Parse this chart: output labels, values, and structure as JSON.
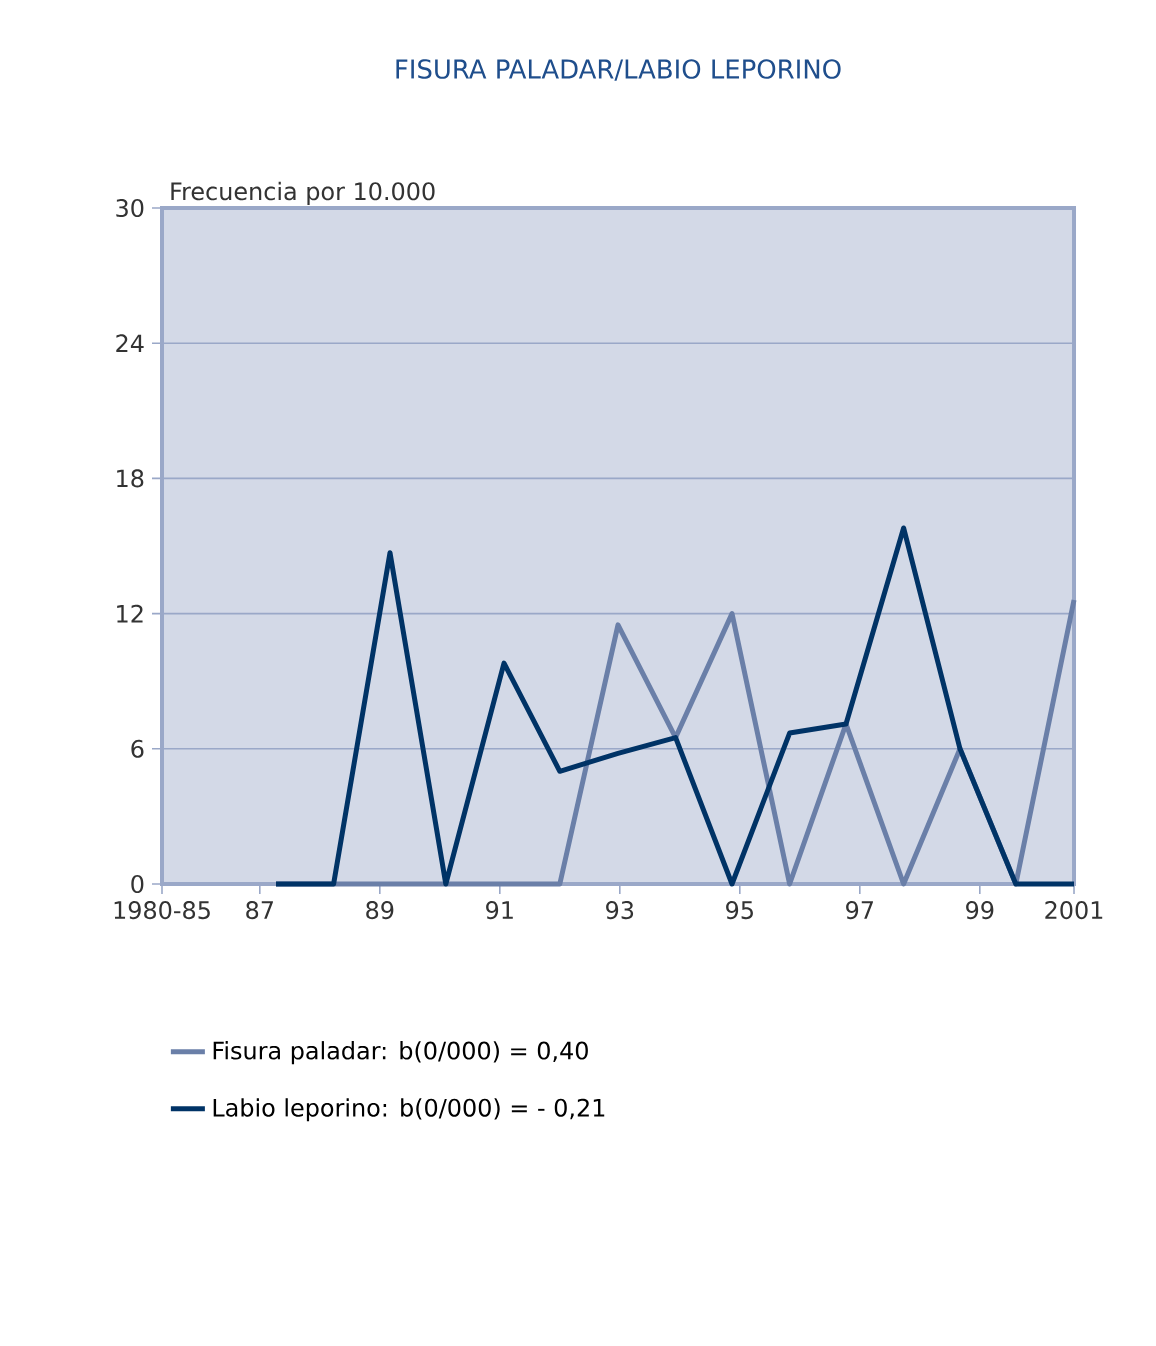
{
  "chart_data": {
    "type": "line",
    "title": "FISURA PALADAR/LABIO LEPORINO",
    "ylabel": "Frecuencia por 10.000",
    "x": [
      1987.27,
      1988.23,
      1989.17,
      1990.1,
      1991.07,
      1992.0,
      1992.97,
      1993.93,
      1994.87,
      1995.83,
      1996.77,
      1997.73,
      1998.67,
      1999.6,
      2000.57
    ],
    "series": [
      {
        "name": "Fisura paladar:  b(0/000) = 0,40",
        "color": "#6a7fa8",
        "values": [
          0,
          0,
          0,
          0,
          0,
          0,
          11.5,
          6.5,
          12.0,
          0,
          7.1,
          0,
          6.0,
          0,
          12.6
        ]
      },
      {
        "name": "Labio leporino:  b(0/000) = - 0,21",
        "color": "#003366",
        "values": [
          0,
          0,
          14.7,
          0,
          9.8,
          5.0,
          5.8,
          6.5,
          0,
          6.7,
          7.1,
          15.8,
          6.0,
          0,
          0
        ]
      }
    ],
    "xlim": [
      1985.37,
      2000.57
    ],
    "xticks": [
      {
        "value": 1985.37,
        "label": "1980-85"
      },
      {
        "value": 1987,
        "label": "87"
      },
      {
        "value": 1989,
        "label": "89"
      },
      {
        "value": 1991,
        "label": "91"
      },
      {
        "value": 1993,
        "label": "93"
      },
      {
        "value": 1995,
        "label": "95"
      },
      {
        "value": 1997,
        "label": "97"
      },
      {
        "value": 1999,
        "label": "99"
      },
      {
        "value": 2000.57,
        "label": "2001"
      }
    ],
    "ylim": [
      0,
      30
    ],
    "yticks": [
      0,
      6,
      12,
      18,
      24,
      30
    ],
    "grid": "y",
    "legend": "bottom",
    "marker": "none",
    "line_style": "solid"
  }
}
